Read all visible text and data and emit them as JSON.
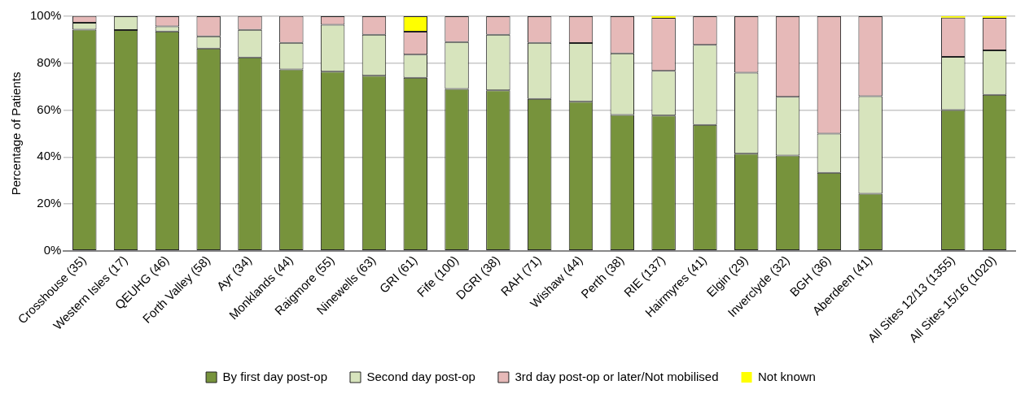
{
  "chart_data": {
    "type": "bar",
    "stacked": true,
    "ylabel": "Percentage of Patients",
    "categories": [
      "Crosshouse (35)",
      "Western Isles (17)",
      "QEUHG (46)",
      "Forth Valley (58)",
      "Ayr (34)",
      "Monklands (44)",
      "Raigmore (55)",
      "Ninewells (63)",
      "GRI (61)",
      "Fife (100)",
      "DGRI (38)",
      "RAH (71)",
      "Wishaw (44)",
      "Perth (38)",
      "RIE (137)",
      "Hairmyres (41)",
      "Elgin (29)",
      "Inverclyde (32)",
      "BGH (36)",
      "Aberdeen (41)",
      null,
      "All Sites 12/13 (1355)",
      "All Sites 15/16 (1020)"
    ],
    "series": [
      {
        "name": "By first day post-op",
        "color": "#77933c",
        "values": [
          94.3,
          94.1,
          93.5,
          86.2,
          82.4,
          77.3,
          76.4,
          74.6,
          73.8,
          69,
          68.4,
          64.8,
          63.6,
          57.9,
          57.7,
          53.7,
          41.4,
          40.6,
          33.3,
          24.4,
          null,
          60,
          66.5
        ]
      },
      {
        "name": "Second day post-op",
        "color": "#d7e4bd",
        "values": [
          2.9,
          5.9,
          2.2,
          5.2,
          11.8,
          11.4,
          20,
          17.5,
          9.8,
          20,
          23.7,
          23.9,
          25,
          26.3,
          19,
          34.1,
          34.5,
          25,
          16.7,
          41.5,
          null,
          22.7,
          19
        ]
      },
      {
        "name": "3rd day post-op or later/Not mobilised",
        "color": "#e6b9b8",
        "values": [
          2.9,
          0,
          4.3,
          8.6,
          5.9,
          11.4,
          3.6,
          7.9,
          9.8,
          11,
          7.9,
          11.3,
          11.4,
          15.8,
          22.6,
          12.2,
          24.1,
          34.4,
          50,
          34.1,
          null,
          16.7,
          13.8
        ]
      },
      {
        "name": "Not known",
        "color": "#ffff00",
        "values": [
          0,
          0,
          0,
          0,
          0,
          0,
          0,
          0,
          6.6,
          0,
          0,
          0,
          0,
          0,
          0.7,
          0,
          0,
          0,
          0,
          0,
          null,
          0.6,
          0.7
        ]
      }
    ],
    "ylim": [
      0,
      100
    ],
    "yticks": [
      {
        "value": 0,
        "label": "0%"
      },
      {
        "value": 20,
        "label": "20%"
      },
      {
        "value": 40,
        "label": "40%"
      },
      {
        "value": 60,
        "label": "60%"
      },
      {
        "value": 80,
        "label": "80%"
      },
      {
        "value": 100,
        "label": "100%"
      }
    ],
    "grid": "y",
    "legend": "bottom"
  }
}
